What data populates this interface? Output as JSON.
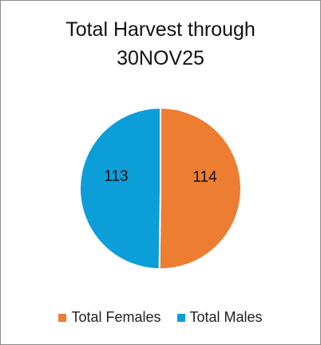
{
  "chart_data": {
    "type": "pie",
    "title_lines": [
      "Total Harvest through",
      "30NOV25"
    ],
    "categories": [
      "Total Females",
      "Total Males"
    ],
    "values": [
      114,
      113
    ],
    "data_labels": [
      "114",
      "113"
    ],
    "colors": [
      "#ED7D31",
      "#0B9ED8"
    ],
    "start_angle_deg": 0,
    "direction": "clockwise",
    "legend_position": "bottom"
  }
}
